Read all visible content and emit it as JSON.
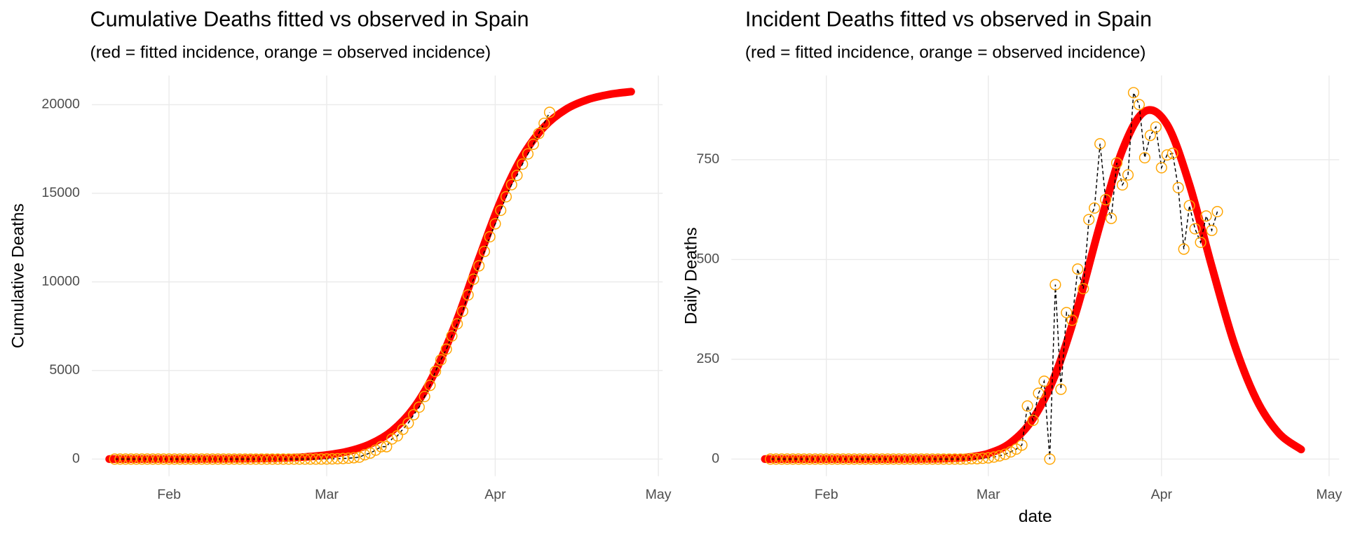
{
  "chart_data": [
    {
      "type": "line",
      "title": "Cumulative Deaths fitted vs observed in Spain",
      "subtitle": "(red = fitted incidence, orange = observed incidence)",
      "y_label": "Cumulative Deaths",
      "xlim": [
        17.8,
        122.8
      ],
      "xticks": [
        {
          "value": 32,
          "label": "Feb"
        },
        {
          "value": 61,
          "label": "Mar"
        },
        {
          "value": 92,
          "label": "Apr"
        },
        {
          "value": 122,
          "label": "May"
        }
      ],
      "ylim": [
        -968,
        21646
      ],
      "yticks": [
        0,
        5000,
        10000,
        15000,
        20000
      ],
      "grid": true,
      "series": [
        {
          "color": "#ff0000",
          "style": "thick-line",
          "x": [
            21,
            25,
            29,
            33,
            37,
            41,
            45,
            49,
            53,
            57,
            61,
            65,
            69,
            73,
            77,
            81,
            85,
            89,
            93,
            97,
            101,
            105,
            109,
            113,
            117
          ],
          "values": [
            0.3,
            0.6,
            1.1,
            2.2,
            4.3,
            8.3,
            16,
            31,
            61,
            119,
            230,
            443,
            846,
            1586,
            2883,
            4964,
            7890,
            11321,
            14565,
            17090,
            18751,
            19739,
            20287,
            20580,
            20735
          ]
        },
        {
          "color": "#ffa500",
          "style": "dashed-with-open-circles",
          "x": [
            22,
            23,
            24,
            25,
            26,
            27,
            28,
            29,
            30,
            31,
            32,
            33,
            34,
            35,
            36,
            37,
            38,
            39,
            40,
            41,
            42,
            43,
            44,
            45,
            46,
            47,
            48,
            49,
            50,
            51,
            52,
            53,
            54,
            55,
            56,
            57,
            58,
            59,
            60,
            61,
            62,
            63,
            64,
            65,
            66,
            67,
            68,
            69,
            70,
            71,
            72,
            73,
            74,
            75,
            76,
            77,
            78,
            79,
            80,
            81,
            82,
            83,
            84,
            85,
            86,
            87,
            88,
            89,
            90,
            91,
            92,
            93,
            94,
            95,
            96,
            97,
            98,
            99,
            100,
            101,
            102
          ],
          "values": [
            0,
            0,
            0,
            0,
            0,
            0,
            0,
            0,
            0,
            0,
            0,
            0,
            0,
            0,
            0,
            0,
            0,
            0,
            0,
            0,
            0,
            0,
            0,
            0,
            0,
            0,
            0,
            0,
            0,
            0,
            0,
            0,
            0,
            0,
            0,
            0,
            1,
            2,
            4,
            7,
            12,
            20,
            32,
            50,
            75,
            110,
            243,
            340,
            505,
            700,
            700,
            1137,
            1312,
            1679,
            2027,
            2503,
            2930,
            3530,
            4159,
            4949,
            5599,
            6202,
            6944,
            7631,
            8343,
            9261,
            10149,
            10904,
            11715,
            12547,
            13277,
            14039,
            14805,
            15485,
            16011,
            16646,
            17223,
            17766,
            18375,
            18948,
            19568
          ]
        }
      ]
    },
    {
      "type": "line",
      "title": "Incident Deaths fitted vs observed in Spain",
      "subtitle": "(red = fitted incidence, orange = observed incidence)",
      "y_label": "Daily Deaths",
      "x_label": "date",
      "xlim": [
        15,
        123.8
      ],
      "xticks": [
        {
          "value": 32,
          "label": "Feb"
        },
        {
          "value": 61,
          "label": "Mar"
        },
        {
          "value": 92,
          "label": "Apr"
        },
        {
          "value": 122,
          "label": "May"
        }
      ],
      "ylim": [
        -43,
        961
      ],
      "yticks": [
        0,
        250,
        500,
        750
      ],
      "grid": true,
      "series": [
        {
          "color": "#ff0000",
          "style": "thick-line",
          "x": [
            21,
            25,
            29,
            33,
            37,
            41,
            45,
            49,
            53,
            57,
            61,
            65,
            69,
            73,
            77,
            81,
            85,
            89,
            93,
            97,
            101,
            105,
            109,
            113,
            117
          ],
          "values": [
            0,
            0,
            0,
            0,
            0,
            0,
            0.04,
            0.23,
            1.1,
            4.2,
            14,
            41,
            101,
            212,
            382,
            588,
            774,
            871,
            838,
            688,
            483,
            290,
            149,
            65,
            24
          ]
        },
        {
          "color": "#ffa500",
          "style": "dashed-with-open-circles",
          "x": [
            22,
            23,
            24,
            25,
            26,
            27,
            28,
            29,
            30,
            31,
            32,
            33,
            34,
            35,
            36,
            37,
            38,
            39,
            40,
            41,
            42,
            43,
            44,
            45,
            46,
            47,
            48,
            49,
            50,
            51,
            52,
            53,
            54,
            55,
            56,
            57,
            58,
            59,
            60,
            61,
            62,
            63,
            64,
            65,
            66,
            67,
            68,
            69,
            70,
            71,
            72,
            73,
            74,
            75,
            76,
            77,
            78,
            79,
            80,
            81,
            82,
            83,
            84,
            85,
            86,
            87,
            88,
            89,
            90,
            91,
            92,
            93,
            94,
            95,
            96,
            97,
            98,
            99,
            100,
            101,
            102
          ],
          "values": [
            0,
            0,
            0,
            0,
            0,
            0,
            0,
            0,
            0,
            0,
            0,
            0,
            0,
            0,
            0,
            0,
            0,
            0,
            0,
            0,
            0,
            0,
            0,
            0,
            0,
            0,
            0,
            0,
            0,
            0,
            0,
            0,
            0,
            0,
            0,
            0,
            1,
            1,
            2,
            3,
            5,
            8,
            12,
            18,
            25,
            35,
            133,
            97,
            165,
            195,
            0,
            437,
            175,
            367,
            348,
            476,
            427,
            600,
            629,
            790,
            650,
            603,
            742,
            687,
            712,
            918,
            888,
            755,
            811,
            832,
            730,
            762,
            766,
            680,
            526,
            635,
            577,
            543,
            609,
            573,
            620
          ]
        }
      ]
    }
  ]
}
